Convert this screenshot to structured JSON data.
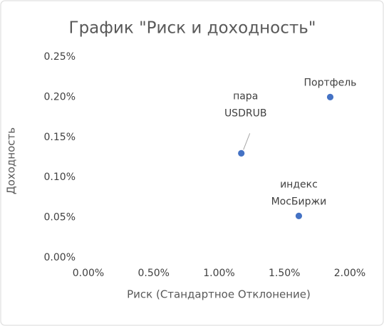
{
  "chart_data": {
    "type": "scatter",
    "title": "График \"Риск и доходность\"",
    "x_label": "Риск (Стандартное Отклонение)",
    "y_label": "Доходность",
    "series": [
      {
        "color": "#4472c4",
        "x": [
          1.17,
          1.61,
          1.85
        ],
        "values": [
          0.13,
          0.052,
          0.2
        ],
        "point_labels": [
          [
            "пара",
            "USDRUB"
          ],
          [
            "индекс",
            "МосБиржи"
          ],
          [
            "Портфель"
          ]
        ]
      }
    ],
    "xlim": [
      0,
      2
    ],
    "ylim": [
      0,
      0.25
    ],
    "xticks": [
      {
        "value": 0,
        "label": "0.00%"
      },
      {
        "value": 0.5,
        "label": "0.50%"
      },
      {
        "value": 1,
        "label": "1.00%"
      },
      {
        "value": 1.5,
        "label": "1.50%"
      },
      {
        "value": 2,
        "label": "2.00%"
      }
    ],
    "yticks": [
      {
        "value": 0,
        "label": "0.00%"
      },
      {
        "value": 0.05,
        "label": "0.05%"
      },
      {
        "value": 0.1,
        "label": "0.10%"
      },
      {
        "value": 0.15,
        "label": "0.15%"
      },
      {
        "value": 0.2,
        "label": "0.20%"
      },
      {
        "value": 0.25,
        "label": "0.25%"
      }
    ],
    "grid": false
  }
}
